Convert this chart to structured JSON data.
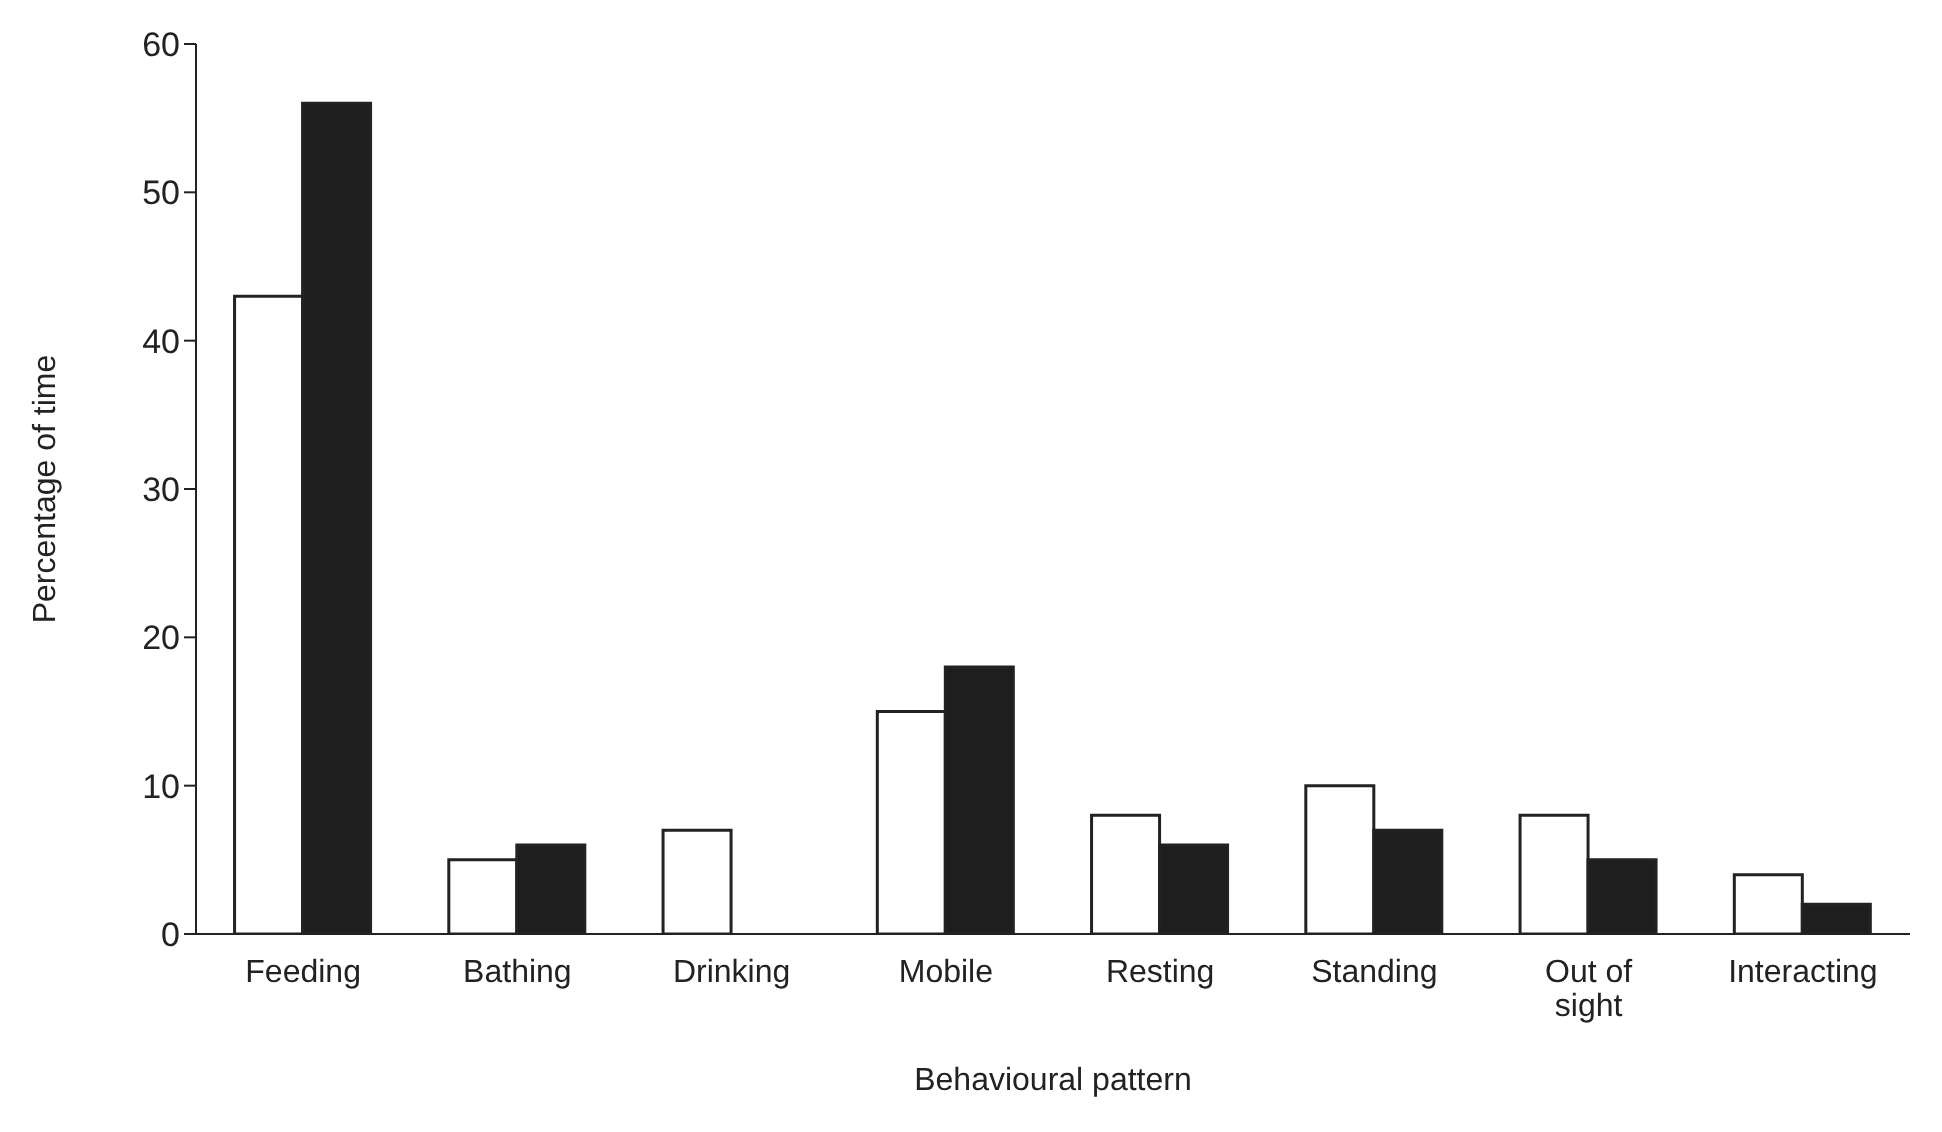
{
  "chart_data": {
    "type": "bar",
    "xlabel": "Behavioural pattern",
    "ylabel": "Percentage of time",
    "categories": [
      "Feeding",
      "Bathing",
      "Drinking",
      "Mobile",
      "Resting",
      "Standing",
      "Out of sight",
      "Interacting"
    ],
    "series": [
      {
        "color": "#ffffff",
        "values": [
          43,
          5,
          7,
          15,
          8,
          10,
          8,
          4
        ]
      },
      {
        "color": "#1e1e1e",
        "values": [
          56,
          6,
          0,
          18,
          6,
          7,
          5,
          2
        ]
      }
    ],
    "ylim": [
      0,
      60
    ],
    "yticks": [
      0,
      10,
      20,
      30,
      40,
      50,
      60
    ],
    "grid": false,
    "legend": false
  }
}
